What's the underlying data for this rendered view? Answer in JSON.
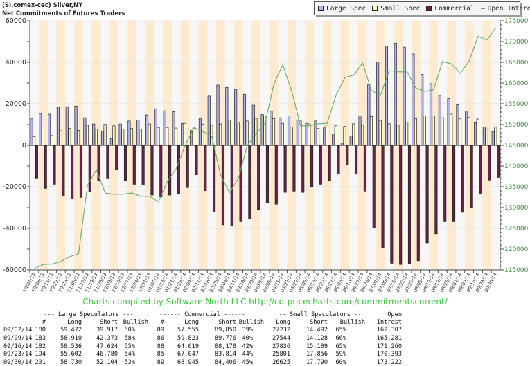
{
  "header": {
    "line1": "(SI,comex-cec) Silver,NY",
    "line2": "Net Commitments of Futures Traders"
  },
  "legend": [
    {
      "label": "Large Spec",
      "color": "#b4b4ec",
      "kind": "box"
    },
    {
      "label": "Small Spec",
      "color": "#ffffc4",
      "kind": "box"
    },
    {
      "label": "Commercial",
      "color": "#6a2048",
      "kind": "box"
    },
    {
      "label": "Open Interest",
      "color": "#66aa66",
      "kind": "line"
    }
  ],
  "footer": "Charts compiled by Software North LLC  http://cotpricecharts.com/commitmentscurrent/",
  "chart_data": {
    "type": "bar",
    "title": "Net Commitments of Futures Traders",
    "grid": true,
    "legend_placement": "top-right",
    "ylim_left": [
      -60000,
      60000
    ],
    "ylim_right": [
      115000,
      175000
    ],
    "left_ticks": [
      "60000",
      "40000",
      "20000",
      "0",
      "-20000",
      "-40000",
      "-60000"
    ],
    "right_ticks": [
      "175000",
      "170000",
      "165000",
      "160000",
      "155000",
      "150000",
      "145000",
      "140000",
      "135000",
      "130000",
      "125000",
      "120000",
      "115000"
    ],
    "categories": [
      "10/01/13",
      "10/08/13",
      "10/15/13",
      "10/22/13",
      "10/29/13",
      "11/05/13",
      "11/12/13",
      "11/19/13",
      "11/26/13",
      "12/03/13",
      "12/10/13",
      "12/17/13",
      "12/24/13",
      "12/31/13",
      "01/07/14",
      "01/14/14",
      "01/21/14",
      "01/28/14",
      "02/04/14",
      "02/11/14",
      "02/18/14",
      "02/25/14",
      "03/04/14",
      "03/11/14",
      "03/18/14",
      "03/25/14",
      "04/01/14",
      "04/08/14",
      "04/15/14",
      "04/22/14",
      "04/29/14",
      "05/06/14",
      "05/13/14",
      "05/20/14",
      "05/27/14",
      "06/03/14",
      "06/10/14",
      "06/17/14",
      "06/24/14",
      "07/01/14",
      "07/08/14",
      "07/15/14",
      "07/22/14",
      "07/29/14",
      "08/05/14",
      "08/12/14",
      "08/19/14",
      "08/26/14",
      "09/02/14",
      "09/09/14",
      "09/16/14",
      "09/23/14",
      "09/30/14"
    ],
    "series": [
      {
        "name": "Large Spec",
        "axis": "left",
        "color": "#b4b4ec",
        "values": [
          13000,
          15300,
          15000,
          18400,
          18600,
          18900,
          13300,
          10300,
          6900,
          3300,
          10300,
          11700,
          12200,
          14600,
          17600,
          16600,
          16200,
          10600,
          7100,
          12800,
          23700,
          29000,
          27900,
          26800,
          24600,
          19300,
          14800,
          16400,
          13300,
          14200,
          12300,
          10600,
          11700,
          8400,
          5500,
          1100,
          4400,
          13700,
          29200,
          40100,
          47800,
          49200,
          47300,
          44000,
          34200,
          29700,
          24000,
          22500,
          19555,
          16537,
          10912,
          8822,
          6626
        ]
      },
      {
        "name": "Small Spec",
        "axis": "left",
        "color": "#ffffc4",
        "values": [
          4200,
          6800,
          4700,
          7000,
          8100,
          7200,
          9700,
          7800,
          10100,
          9400,
          7800,
          8100,
          7800,
          10300,
          8600,
          8600,
          8300,
          10600,
          8000,
          10100,
          9700,
          10300,
          12200,
          11100,
          11700,
          13000,
          14200,
          12800,
          10600,
          8900,
          11700,
          10300,
          8100,
          9700,
          9500,
          9100,
          10400,
          9700,
          13900,
          12000,
          10400,
          9700,
          11100,
          12800,
          14200,
          14200,
          13300,
          15000,
          12740,
          13416,
          12647,
          7945,
          8835
        ]
      },
      {
        "name": "Commercial",
        "axis": "left",
        "color": "#6a2048",
        "values": [
          -15800,
          -20800,
          -18800,
          -24400,
          -25500,
          -25100,
          -22200,
          -16900,
          -15800,
          -11800,
          -17200,
          -18800,
          -19100,
          -24000,
          -24900,
          -24000,
          -23300,
          -20400,
          -14200,
          -21900,
          -32200,
          -38300,
          -38800,
          -36800,
          -35300,
          -30900,
          -27700,
          -28400,
          -22700,
          -22100,
          -22700,
          -19900,
          -18800,
          -16900,
          -13900,
          -9300,
          -13900,
          -22100,
          -39800,
          -49200,
          -56800,
          -57400,
          -57200,
          -55600,
          -47000,
          -42600,
          -36800,
          -36800,
          -32295,
          -29953,
          -23559,
          -16767,
          -15461
        ]
      },
      {
        "name": "Open Interest",
        "axis": "right",
        "type": "line",
        "color": "#66aa66",
        "values": [
          115300,
          116300,
          116400,
          117000,
          118200,
          118900,
          135400,
          139100,
          133500,
          133200,
          133200,
          133500,
          132700,
          132700,
          131400,
          136300,
          139400,
          145000,
          149300,
          148300,
          147200,
          137800,
          133600,
          137000,
          145000,
          147800,
          150300,
          159700,
          164400,
          158100,
          149700,
          149700,
          150200,
          150300,
          157000,
          161300,
          161900,
          164800,
          158200,
          157000,
          163000,
          162700,
          162700,
          158800,
          158000,
          158400,
          165200,
          164600,
          162307,
          165281,
          171260,
          170393,
          173222
        ]
      }
    ]
  },
  "table": {
    "group_headers": {
      "large": "--- Large Speculators ---",
      "commercial": "------ Commercial ------",
      "small": "-- Small Speculators --",
      "oi": "Open"
    },
    "columns": [
      "",
      "#",
      "Long",
      "Short",
      "Bullish",
      "#",
      "Long",
      "Short",
      "Bullish",
      "Long",
      "Short",
      "Bullish",
      "Intrest"
    ],
    "rows": [
      [
        "09/02/14",
        "180",
        "59,472",
        "39,917",
        "60%",
        "89",
        "57,555",
        "89,850",
        "39%",
        "27232",
        "14,492",
        "65%",
        "162,307"
      ],
      [
        "09/09/14",
        "183",
        "58,910",
        "42,373",
        "58%",
        "86",
        "59,823",
        "89,776",
        "40%",
        "27544",
        "14,128",
        "66%",
        "165,281"
      ],
      [
        "09/16/14",
        "182",
        "58,536",
        "47,624",
        "55%",
        "88",
        "64,619",
        "88,178",
        "42%",
        "27836",
        "15,189",
        "65%",
        "171,260"
      ],
      [
        "09/23/14",
        "194",
        "55,602",
        "46,780",
        "54%",
        "85",
        "67,047",
        "83,814",
        "44%",
        "25801",
        "17,856",
        "59%",
        "170,393"
      ],
      [
        "09/30/14",
        "201",
        "58,730",
        "52,104",
        "53%",
        "89",
        "68,945",
        "84,406",
        "45%",
        "26625",
        "17,790",
        "60%",
        "173,222"
      ]
    ]
  }
}
